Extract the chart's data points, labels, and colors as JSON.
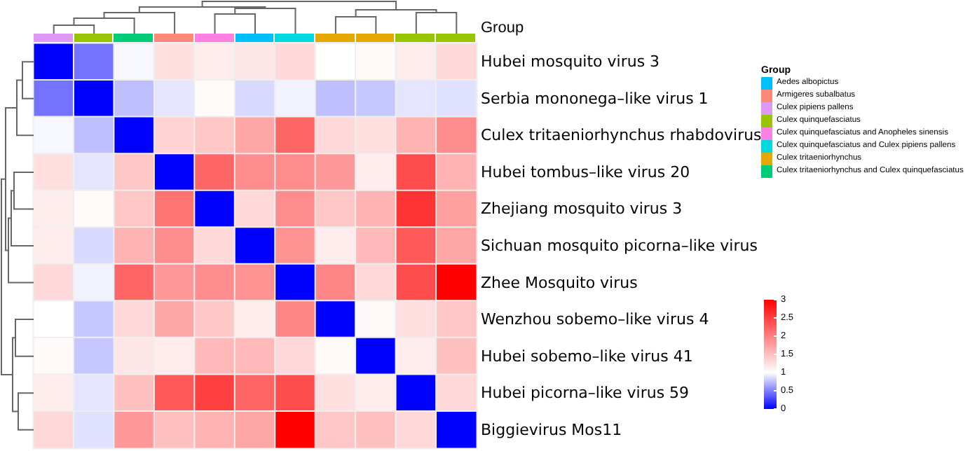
{
  "chart_data": [
    {
      "type": "heatmap",
      "categories": [
        null,
        null,
        null,
        null,
        null,
        null,
        null,
        null,
        null,
        null,
        null
      ],
      "y_categories": [
        "Hubei mosquito virus 3",
        "Serbia mononega–like virus 1",
        "Culex tritaeniorhynchus rhabdovirus",
        "Hubei tombus–like virus 20",
        "Zhejiang mosquito virus 3",
        "Sichuan mosquito picorna–like virus",
        "Zhee Mosquito virus",
        "Wenzhou sobemo–like virus 4",
        "Hubei sobemo–like virus 41",
        "Hubei picorna–like virus 59",
        "Biggievirus Mos11"
      ],
      "cells": [
        [
          0,
          0.45,
          0.97,
          1.25,
          1.15,
          1.2,
          1.3,
          1.0,
          1.05,
          1.15,
          1.3
        ],
        [
          0.45,
          0,
          0.75,
          0.9,
          1.03,
          0.85,
          0.95,
          0.75,
          0.78,
          0.9,
          0.88
        ],
        [
          0.97,
          0.75,
          0,
          1.35,
          1.45,
          1.7,
          2.2,
          1.3,
          1.25,
          1.6,
          1.9
        ],
        [
          1.25,
          0.9,
          1.45,
          0,
          2.2,
          1.9,
          1.9,
          1.8,
          1.15,
          2.4,
          1.6
        ],
        [
          1.15,
          1.03,
          1.45,
          2.1,
          0,
          1.3,
          1.9,
          1.45,
          1.6,
          2.6,
          1.75
        ],
        [
          1.15,
          0.85,
          1.6,
          1.9,
          1.3,
          0,
          1.85,
          1.15,
          1.55,
          2.3,
          1.7
        ],
        [
          1.3,
          0.95,
          2.2,
          1.8,
          1.9,
          1.85,
          0,
          1.95,
          1.3,
          2.4,
          3
        ],
        [
          1.0,
          0.78,
          1.3,
          1.7,
          1.45,
          1.15,
          1.95,
          0,
          1.05,
          1.25,
          1.45
        ],
        [
          1.05,
          0.78,
          1.2,
          1.15,
          1.55,
          1.55,
          1.3,
          1.05,
          0,
          1.15,
          1.5
        ],
        [
          1.15,
          0.9,
          1.5,
          2.3,
          2.5,
          2.2,
          2.4,
          1.25,
          1.15,
          0,
          1.3
        ],
        [
          1.3,
          0.88,
          1.8,
          1.5,
          1.6,
          1.7,
          3,
          1.45,
          1.5,
          1.3,
          0
        ]
      ],
      "clim": [
        0,
        3
      ],
      "cticks": [
        0,
        0.5,
        1,
        1.5,
        2,
        2.5,
        3
      ]
    },
    {
      "type": "other",
      "legend_title": "Group",
      "categories": [
        "Aedes albopictus",
        "Armigeres subalbatus",
        "Culex pipiens pallens",
        "Culex quinquefasciatus",
        "Culex quinquefasciatus and Anopheles sinensis",
        "Culex quinquefasciatus and Culex pipiens pallens",
        "Culex tritaeniorhynchus",
        "Culex tritaeniorhynchus and Culex quinquefasciatus"
      ],
      "colors": [
        "#00bfff",
        "#ff8877",
        "#dd99f5",
        "#99c400",
        "#ff80e0",
        "#00d8e0",
        "#e6a800",
        "#00cc77"
      ]
    }
  ]
}
